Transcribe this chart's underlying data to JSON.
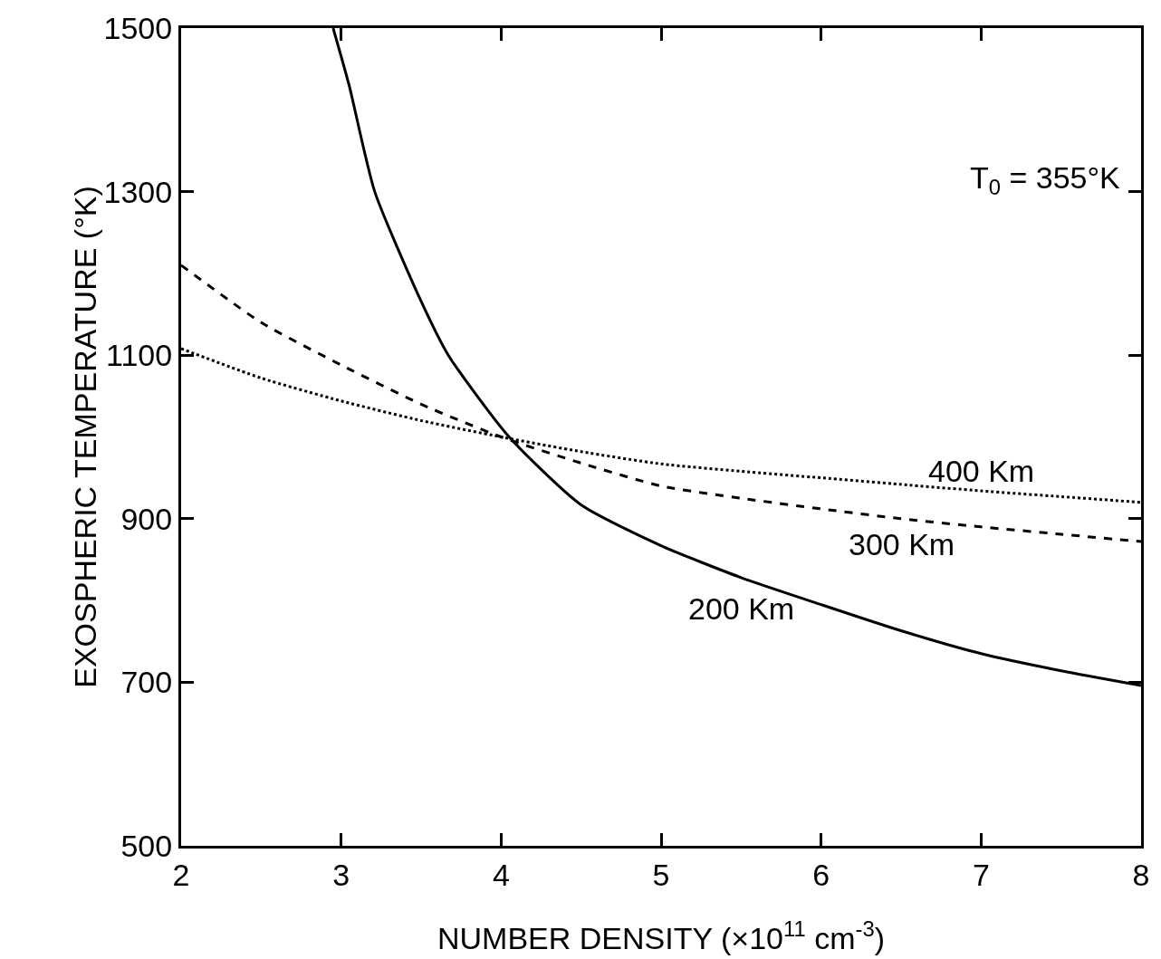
{
  "chart_data": {
    "type": "line",
    "xlabel": "NUMBER DENSITY (×10$^{11}$ cm$^{-3}$)",
    "ylabel": "EXOSPHERIC TEMPERATURE (°K)",
    "xlim": [
      2,
      8
    ],
    "xticks": [
      2,
      3,
      4,
      5,
      6,
      7,
      8
    ],
    "ylim": [
      500,
      1500
    ],
    "yticks": [
      500,
      700,
      900,
      1100,
      1300,
      1500
    ],
    "grid": false,
    "legend": false,
    "marker": "none",
    "annotations": [
      "T$_{0}$ = 355°K"
    ],
    "series": [
      {
        "name": "400 Km",
        "color": "#000000",
        "line_style": "dotted",
        "x": [
          2,
          2.5,
          3,
          3.5,
          4,
          4.5,
          5,
          5.5,
          6,
          6.5,
          7,
          7.5,
          8
        ],
        "values": [
          1108,
          1072,
          1044,
          1020,
          1000,
          982,
          967,
          958,
          950,
          942,
          934,
          927,
          920
        ]
      },
      {
        "name": "300 Km",
        "color": "#000000",
        "line_style": "dashed",
        "x": [
          2,
          2.5,
          3,
          3.5,
          4,
          4.5,
          5,
          5.5,
          6,
          6.5,
          7,
          7.5,
          8
        ],
        "values": [
          1210,
          1140,
          1088,
          1040,
          1000,
          968,
          940,
          925,
          912,
          900,
          890,
          881,
          872
        ]
      },
      {
        "name": "200 Km",
        "color": "#000000",
        "line_style": "solid",
        "x": [
          2.95,
          3.05,
          3.21,
          3.5,
          3.67,
          4.05,
          4.5,
          5,
          5.5,
          6,
          6.5,
          7,
          7.5,
          8
        ],
        "values": [
          1500,
          1430,
          1300,
          1166,
          1100,
          1000,
          917,
          867,
          828,
          795,
          763,
          735,
          714,
          696
        ]
      }
    ]
  }
}
